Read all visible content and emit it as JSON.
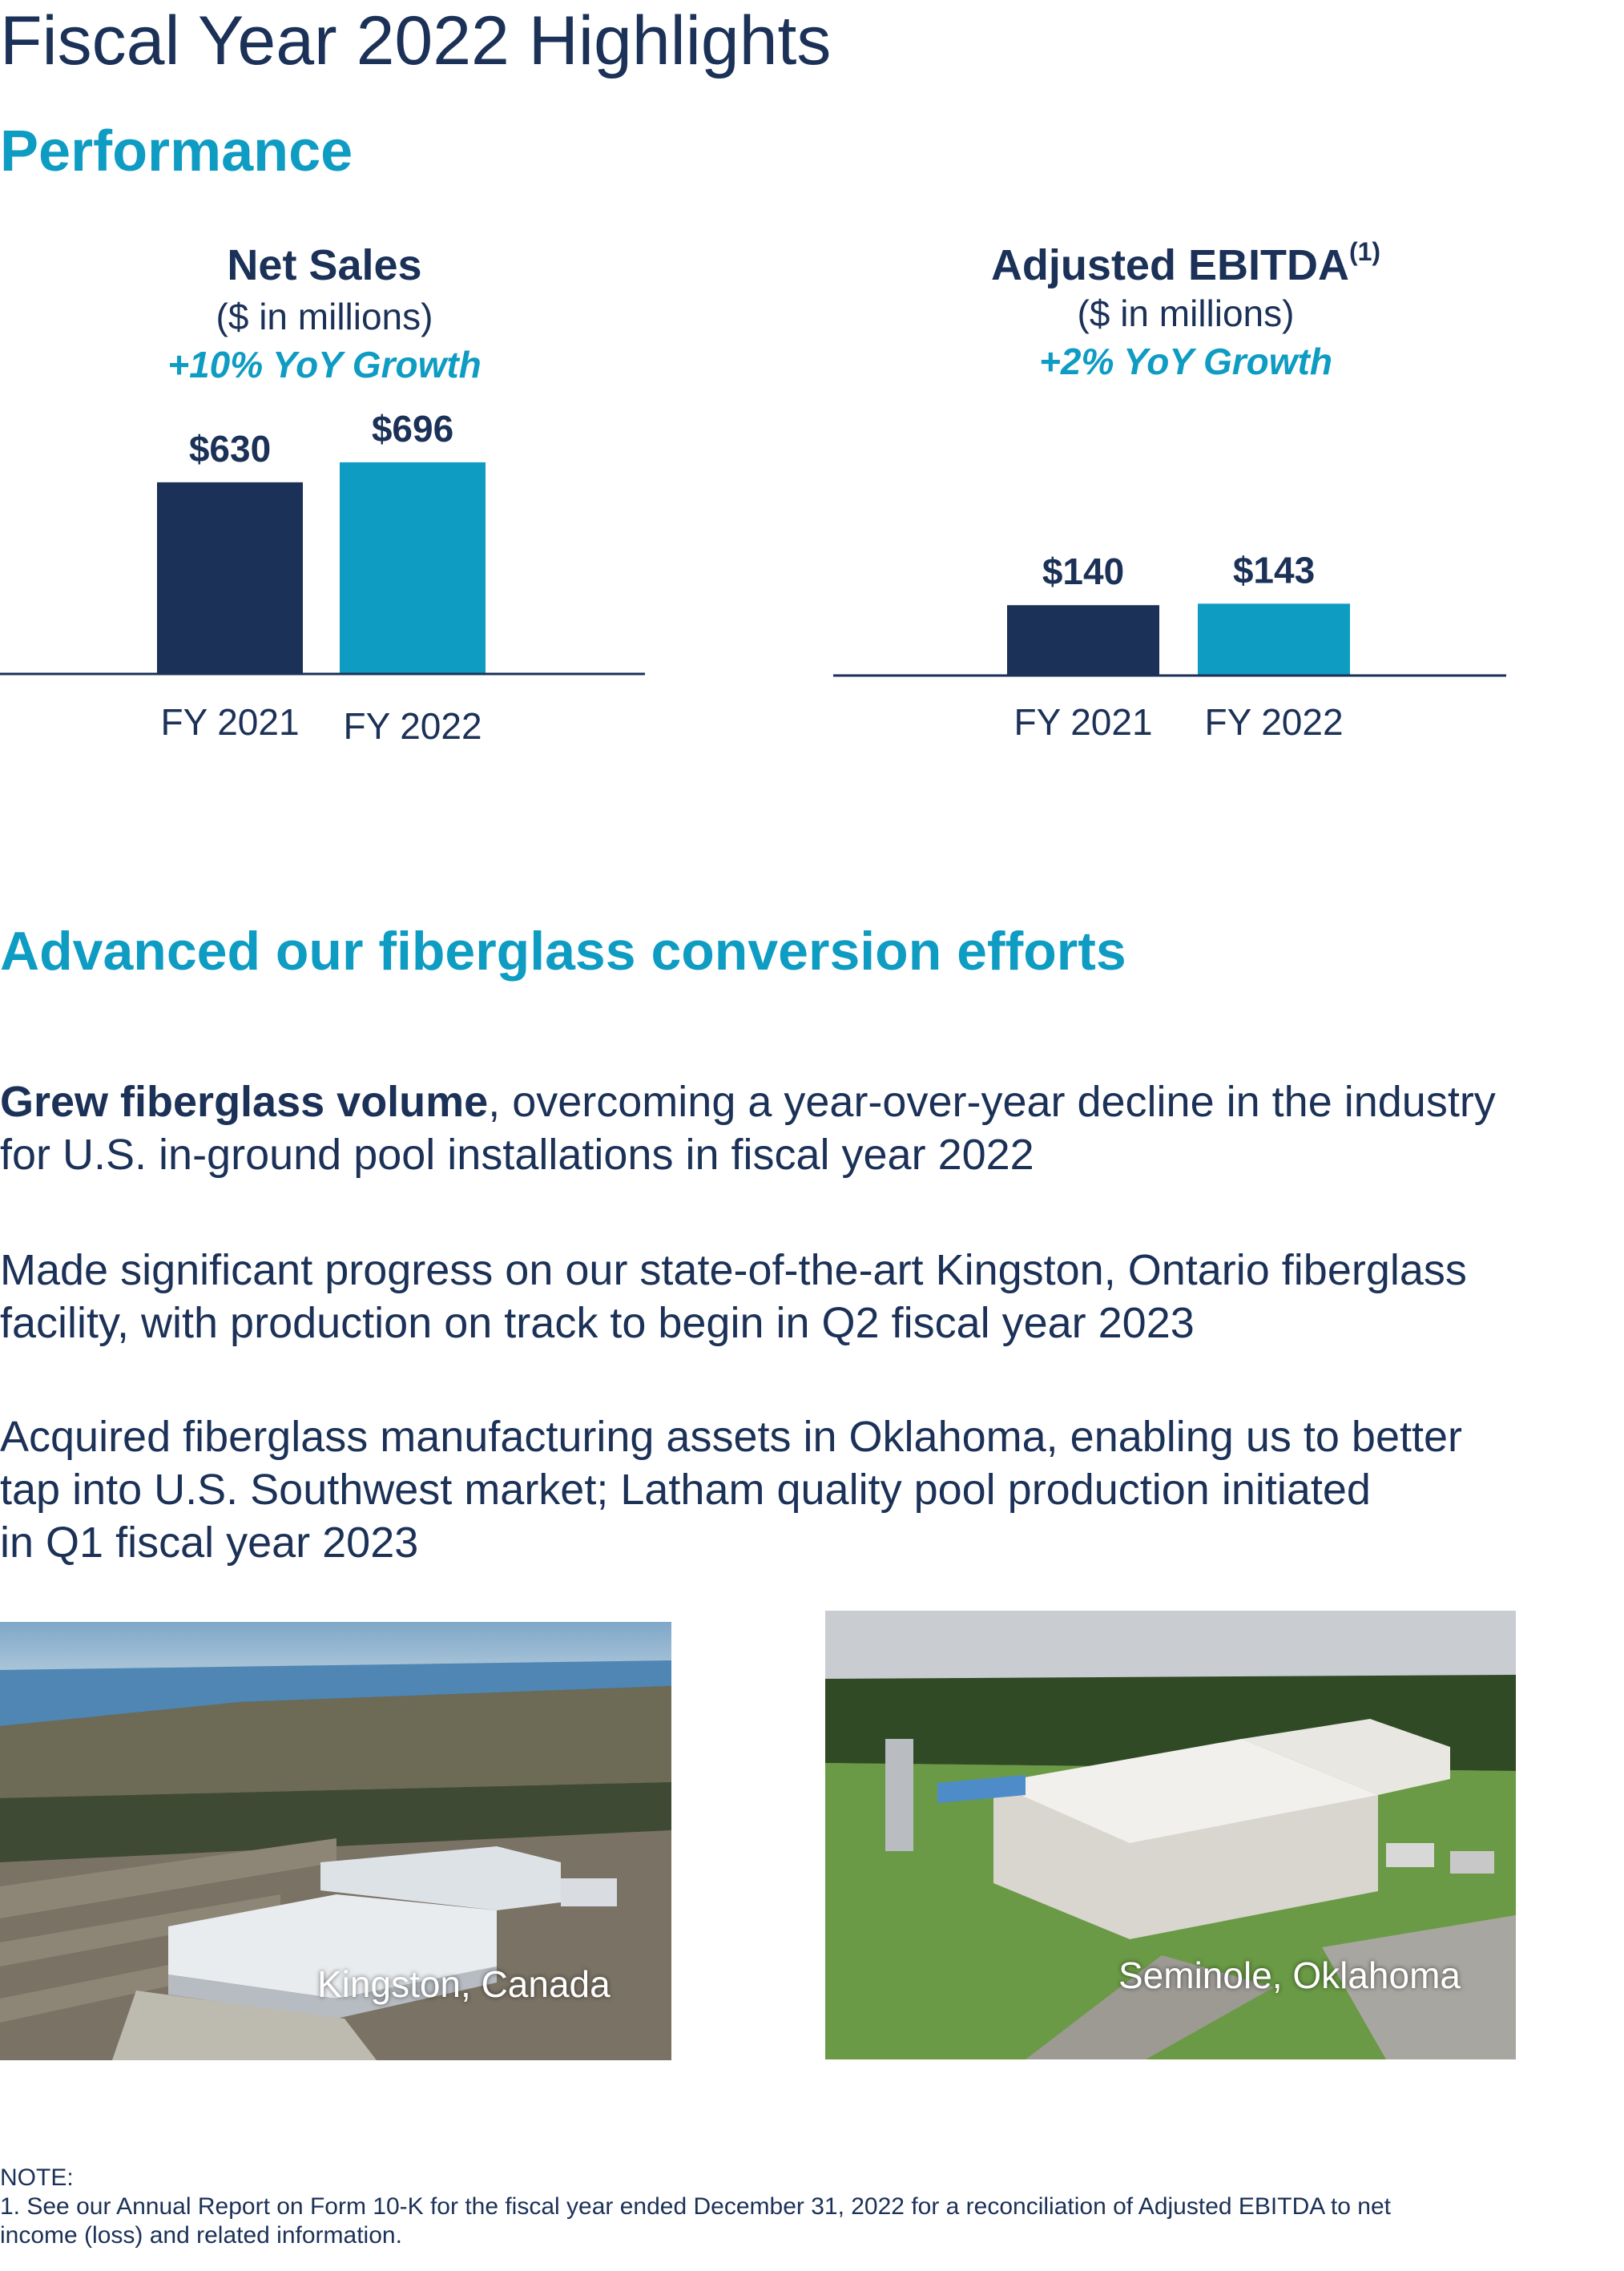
{
  "page": {
    "title": "Fiscal Year 2022 Highlights",
    "performance_heading": "Performance"
  },
  "chart_data": [
    {
      "type": "bar",
      "title": "Net Sales",
      "subtitle": "($ in millions)",
      "growth": "+10% YoY Growth",
      "categories": [
        "FY 2021",
        "FY 2022"
      ],
      "values": [
        630,
        696
      ],
      "data_labels": [
        "$630",
        "$696"
      ],
      "colors": [
        "#1b3157",
        "#0e9cc3"
      ]
    },
    {
      "type": "bar",
      "title": "Adjusted EBITDA",
      "title_footnote": "(1)",
      "subtitle": "($ in millions)",
      "growth": "+2% YoY Growth",
      "categories": [
        "FY 2021",
        "FY 2022"
      ],
      "values": [
        140,
        143
      ],
      "data_labels": [
        "$140",
        "$143"
      ],
      "colors": [
        "#1b3157",
        "#0e9cc3"
      ]
    }
  ],
  "conversion": {
    "heading": "Advanced our fiberglass conversion efforts",
    "bullets": [
      {
        "bold": "Grew fiberglass volume",
        "line1_rest": ", overcoming a year-over-year decline in the industry",
        "line2": "for U.S. in-ground pool installations in fiscal year 2022"
      },
      {
        "line1": "Made significant progress on our state-of-the-art Kingston, Ontario fiberglass",
        "line2": "facility, with production on track to begin in Q2 fiscal year 2023"
      },
      {
        "line1": "Acquired fiberglass manufacturing assets in Oklahoma, enabling us to better",
        "line2": "tap into U.S. Southwest market; Latham quality pool production initiated",
        "line3": "in Q1 fiscal year 2023"
      }
    ]
  },
  "photos": [
    {
      "caption": "Kingston, Canada"
    },
    {
      "caption": "Seminole, Oklahoma"
    }
  ],
  "note": {
    "label": "NOTE:",
    "line1": "1. See our Annual Report on Form 10-K for the fiscal year ended December 31, 2022 for a reconciliation of Adjusted EBITDA to net",
    "line2": "income (loss) and related information."
  }
}
